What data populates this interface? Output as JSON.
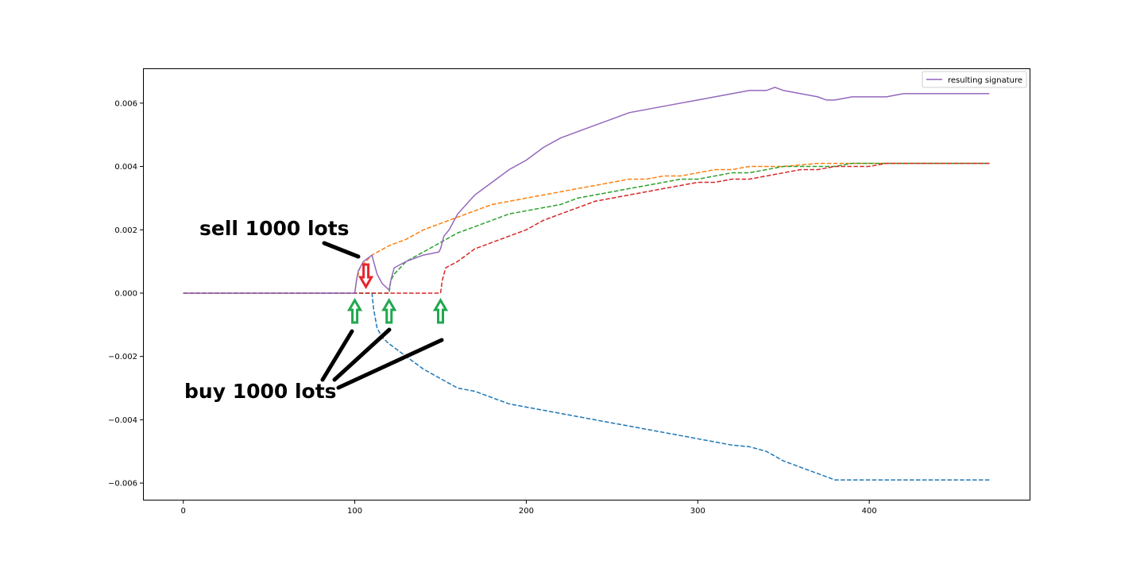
{
  "chart_data": {
    "type": "line",
    "title": "",
    "xlabel": "",
    "ylabel": "",
    "xlim": [
      -23.5,
      493.5
    ],
    "ylim": [
      -0.00655,
      0.0071
    ],
    "xticks": [
      0,
      100,
      200,
      300,
      400
    ],
    "xtick_labels": [
      "0",
      "100",
      "200",
      "300",
      "400"
    ],
    "yticks": [
      -0.006,
      -0.004,
      -0.002,
      0.0,
      0.002,
      0.004,
      0.006
    ],
    "ytick_labels": [
      "−0.006",
      "−0.004",
      "−0.002",
      "0.000",
      "0.002",
      "0.004",
      "0.006"
    ],
    "grid": false,
    "legend_position": "upper-right",
    "series": [
      {
        "color": "#1f77b4",
        "dashed": true,
        "points": [
          [
            0,
            0
          ],
          [
            110,
            0
          ],
          [
            111,
            -0.0005
          ],
          [
            113,
            -0.0011
          ],
          [
            116,
            -0.0014
          ],
          [
            120,
            -0.0016
          ],
          [
            130,
            -0.002
          ],
          [
            140,
            -0.0024
          ],
          [
            150,
            -0.0027
          ],
          [
            160,
            -0.003
          ],
          [
            170,
            -0.0031
          ],
          [
            180,
            -0.0033
          ],
          [
            190,
            -0.0035
          ],
          [
            200,
            -0.0036
          ],
          [
            210,
            -0.0037
          ],
          [
            220,
            -0.0038
          ],
          [
            230,
            -0.0039
          ],
          [
            240,
            -0.004
          ],
          [
            250,
            -0.0041
          ],
          [
            260,
            -0.0042
          ],
          [
            270,
            -0.0043
          ],
          [
            280,
            -0.0044
          ],
          [
            290,
            -0.0045
          ],
          [
            300,
            -0.0046
          ],
          [
            310,
            -0.0047
          ],
          [
            320,
            -0.0048
          ],
          [
            330,
            -0.00485
          ],
          [
            340,
            -0.005
          ],
          [
            350,
            -0.0053
          ],
          [
            360,
            -0.0055
          ],
          [
            370,
            -0.0057
          ],
          [
            380,
            -0.0059
          ],
          [
            390,
            -0.0059
          ],
          [
            470,
            -0.0059
          ]
        ]
      },
      {
        "color": "#ff7f0e",
        "dashed": true,
        "points": [
          [
            0,
            0
          ],
          [
            100,
            0
          ],
          [
            101,
            0.0004
          ],
          [
            103,
            0.0008
          ],
          [
            110,
            0.0012
          ],
          [
            120,
            0.0015
          ],
          [
            130,
            0.0017
          ],
          [
            140,
            0.002
          ],
          [
            150,
            0.0022
          ],
          [
            160,
            0.0024
          ],
          [
            170,
            0.0026
          ],
          [
            180,
            0.0028
          ],
          [
            190,
            0.0029
          ],
          [
            200,
            0.003
          ],
          [
            210,
            0.0031
          ],
          [
            220,
            0.0032
          ],
          [
            230,
            0.0033
          ],
          [
            240,
            0.0034
          ],
          [
            250,
            0.0035
          ],
          [
            260,
            0.0036
          ],
          [
            270,
            0.0036
          ],
          [
            280,
            0.0037
          ],
          [
            290,
            0.0037
          ],
          [
            300,
            0.0038
          ],
          [
            310,
            0.0039
          ],
          [
            320,
            0.0039
          ],
          [
            330,
            0.004
          ],
          [
            340,
            0.004
          ],
          [
            350,
            0.004
          ],
          [
            360,
            0.00405
          ],
          [
            370,
            0.0041
          ],
          [
            380,
            0.0041
          ],
          [
            470,
            0.0041
          ]
        ]
      },
      {
        "color": "#2ca02c",
        "dashed": true,
        "points": [
          [
            0,
            0
          ],
          [
            120,
            0
          ],
          [
            121,
            0.0004
          ],
          [
            123,
            0.0006
          ],
          [
            130,
            0.001
          ],
          [
            140,
            0.0013
          ],
          [
            150,
            0.0016
          ],
          [
            160,
            0.0019
          ],
          [
            170,
            0.0021
          ],
          [
            180,
            0.0023
          ],
          [
            190,
            0.0025
          ],
          [
            200,
            0.0026
          ],
          [
            210,
            0.0027
          ],
          [
            220,
            0.0028
          ],
          [
            230,
            0.003
          ],
          [
            240,
            0.0031
          ],
          [
            250,
            0.0032
          ],
          [
            260,
            0.0033
          ],
          [
            270,
            0.0034
          ],
          [
            280,
            0.0035
          ],
          [
            290,
            0.0036
          ],
          [
            300,
            0.0036
          ],
          [
            310,
            0.0037
          ],
          [
            320,
            0.0038
          ],
          [
            330,
            0.0038
          ],
          [
            340,
            0.0039
          ],
          [
            350,
            0.004
          ],
          [
            360,
            0.004
          ],
          [
            370,
            0.004
          ],
          [
            380,
            0.004
          ],
          [
            390,
            0.0041
          ],
          [
            470,
            0.0041
          ]
        ]
      },
      {
        "color": "#d62728",
        "dashed": true,
        "points": [
          [
            0,
            0
          ],
          [
            150,
            0
          ],
          [
            151,
            0.0004
          ],
          [
            153,
            0.0008
          ],
          [
            160,
            0.001
          ],
          [
            170,
            0.0014
          ],
          [
            180,
            0.0016
          ],
          [
            190,
            0.0018
          ],
          [
            200,
            0.002
          ],
          [
            210,
            0.0023
          ],
          [
            220,
            0.0025
          ],
          [
            230,
            0.0027
          ],
          [
            240,
            0.0029
          ],
          [
            250,
            0.003
          ],
          [
            260,
            0.0031
          ],
          [
            270,
            0.0032
          ],
          [
            280,
            0.0033
          ],
          [
            290,
            0.0034
          ],
          [
            300,
            0.0035
          ],
          [
            310,
            0.0035
          ],
          [
            320,
            0.0036
          ],
          [
            330,
            0.0036
          ],
          [
            340,
            0.0037
          ],
          [
            350,
            0.0038
          ],
          [
            360,
            0.0039
          ],
          [
            370,
            0.0039
          ],
          [
            380,
            0.004
          ],
          [
            390,
            0.004
          ],
          [
            400,
            0.004
          ],
          [
            410,
            0.0041
          ],
          [
            470,
            0.0041
          ]
        ]
      },
      {
        "name": "resulting signature",
        "color": "#9467bd",
        "dashed": false,
        "points": [
          [
            0,
            0
          ],
          [
            100,
            0
          ],
          [
            101,
            0.0004
          ],
          [
            102,
            0.0007
          ],
          [
            105,
            0.001
          ],
          [
            110,
            0.0012
          ],
          [
            111,
            0.001
          ],
          [
            113,
            0.0006
          ],
          [
            116,
            0.0003
          ],
          [
            120,
            0.0001
          ],
          [
            121,
            0.0004
          ],
          [
            123,
            0.0008
          ],
          [
            130,
            0.001
          ],
          [
            140,
            0.0012
          ],
          [
            149,
            0.0013
          ],
          [
            150,
            0.0014
          ],
          [
            152,
            0.0018
          ],
          [
            155,
            0.002
          ],
          [
            160,
            0.0025
          ],
          [
            170,
            0.0031
          ],
          [
            180,
            0.0035
          ],
          [
            190,
            0.0039
          ],
          [
            200,
            0.0042
          ],
          [
            210,
            0.0046
          ],
          [
            220,
            0.0049
          ],
          [
            230,
            0.0051
          ],
          [
            240,
            0.0053
          ],
          [
            250,
            0.0055
          ],
          [
            260,
            0.0057
          ],
          [
            270,
            0.0058
          ],
          [
            280,
            0.0059
          ],
          [
            290,
            0.006
          ],
          [
            300,
            0.0061
          ],
          [
            310,
            0.0062
          ],
          [
            320,
            0.0063
          ],
          [
            330,
            0.0064
          ],
          [
            340,
            0.0064
          ],
          [
            345,
            0.0065
          ],
          [
            350,
            0.0064
          ],
          [
            360,
            0.0063
          ],
          [
            370,
            0.0062
          ],
          [
            375,
            0.0061
          ],
          [
            380,
            0.0061
          ],
          [
            390,
            0.0062
          ],
          [
            400,
            0.0062
          ],
          [
            410,
            0.0062
          ],
          [
            420,
            0.0063
          ],
          [
            470,
            0.0063
          ]
        ]
      }
    ],
    "annotations": {
      "sell_text": "sell 1000 lots",
      "buy_text": "buy 1000 lots",
      "sell_arrows": [
        {
          "x": 106.5,
          "y": 0.0002,
          "color": "#e8242d"
        }
      ],
      "buy_arrows": [
        {
          "x": 100,
          "y": -0.0005,
          "color": "#21a750"
        },
        {
          "x": 120,
          "y": -0.0003,
          "color": "#21a750"
        },
        {
          "x": 150,
          "y": -0.0008,
          "color": "#21a750"
        }
      ]
    }
  }
}
